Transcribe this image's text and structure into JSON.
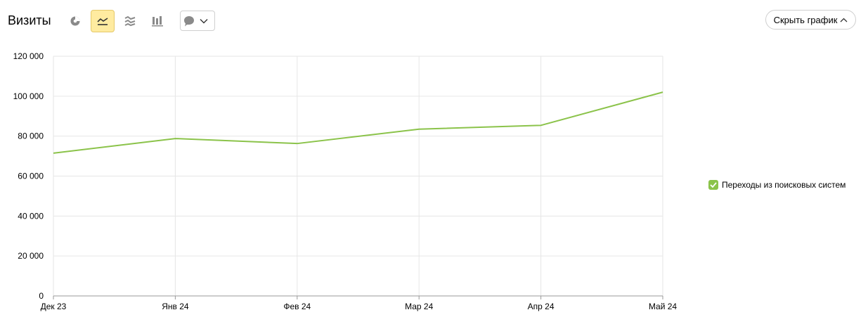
{
  "header": {
    "title": "Визиты",
    "hide_chart_label": "Скрыть график"
  },
  "toolbar": {
    "chart_types": [
      {
        "name": "pie-chart-icon",
        "active": false
      },
      {
        "name": "line-chart-icon",
        "active": true
      },
      {
        "name": "area-chart-icon",
        "active": false
      },
      {
        "name": "bar-chart-icon",
        "active": false
      }
    ],
    "annotation_icon": "speech-bubble-icon",
    "dropdown_icon": "chevron-down-icon"
  },
  "colors": {
    "accent": "#ffeba0",
    "series": "#8bc34a",
    "grid": "#e6e6e6",
    "icon": "#8a8a8a"
  },
  "chart_data": {
    "type": "line",
    "categories": [
      "Дек 23",
      "Янв 24",
      "Фев 24",
      "Мар 24",
      "Апр 24",
      "Май 24"
    ],
    "series": [
      {
        "name": "Переходы из поисковых систем",
        "color": "#8bc34a",
        "values": [
          71500,
          78800,
          76300,
          83500,
          85400,
          102000
        ]
      }
    ],
    "ylim": [
      0,
      120000
    ],
    "yticks": [
      0,
      20000,
      40000,
      60000,
      80000,
      100000,
      120000
    ],
    "ytick_labels": [
      "0",
      "20 000",
      "40 000",
      "60 000",
      "80 000",
      "100 000",
      "120 000"
    ],
    "grid": true,
    "legend_position": "right"
  },
  "legend": {
    "items": [
      {
        "label": "Переходы из поисковых систем",
        "checked": true,
        "color": "#8bc34a"
      }
    ]
  }
}
